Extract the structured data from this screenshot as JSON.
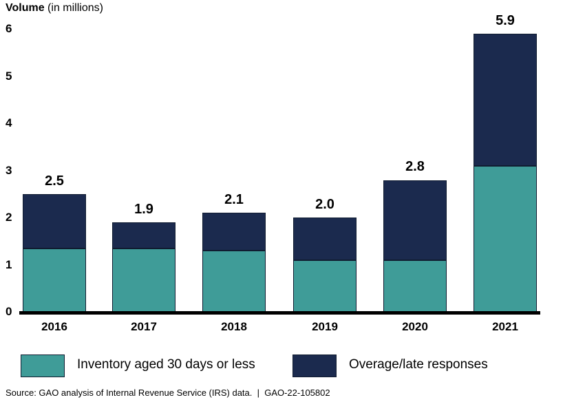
{
  "title": {
    "main": "Volume",
    "unit": " (in millions)"
  },
  "chart_data": {
    "type": "bar",
    "stacked": true,
    "title": "Volume (in millions)",
    "categories": [
      "2016",
      "2017",
      "2018",
      "2019",
      "2020",
      "2021"
    ],
    "series": [
      {
        "name": "Inventory aged 30 days or less",
        "color": "#3F9C98",
        "values": [
          1.35,
          1.35,
          1.3,
          1.1,
          1.1,
          3.1
        ]
      },
      {
        "name": "Overage/late responses",
        "color": "#1B2A4E",
        "values": [
          1.15,
          0.55,
          0.8,
          0.9,
          1.7,
          2.8
        ]
      }
    ],
    "total_labels": [
      "2.5",
      "1.9",
      "2.1",
      "2.0",
      "2.8",
      "5.9"
    ],
    "ylim": [
      0,
      6
    ],
    "yticks": [
      "0",
      "1",
      "2",
      "3",
      "4",
      "5",
      "6"
    ],
    "grid": false,
    "legend_position": "bottom"
  },
  "legend": {
    "items": [
      {
        "label": "Inventory aged 30 days or less",
        "color": "#3F9C98"
      },
      {
        "label": "Overage/late responses",
        "color": "#1B2A4E"
      }
    ]
  },
  "source": {
    "text": "Source: GAO analysis of Internal Revenue Service (IRS) data.  |  GAO-22-105802"
  }
}
